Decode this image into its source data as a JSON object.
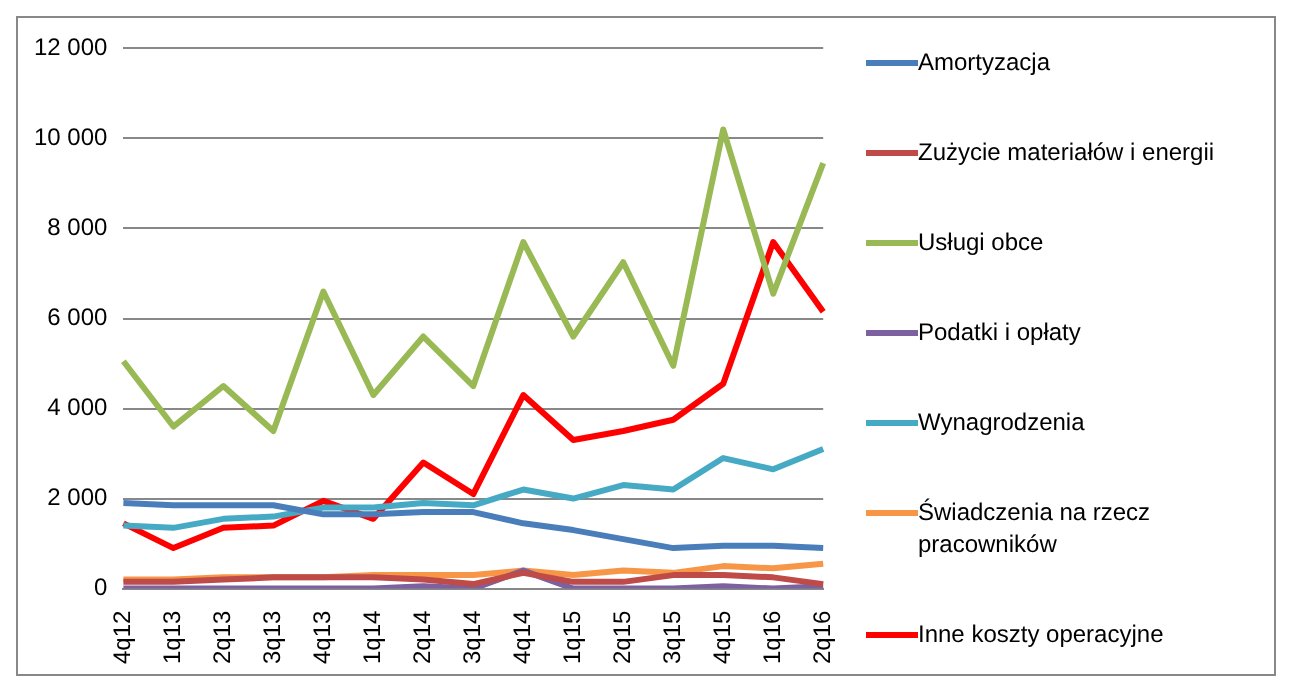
{
  "chart_data": {
    "type": "line",
    "categories": [
      "4q12",
      "1q13",
      "2q13",
      "3q13",
      "4q13",
      "1q14",
      "2q14",
      "3q14",
      "4q14",
      "1q15",
      "2q15",
      "3q15",
      "4q15",
      "1q16",
      "2q16"
    ],
    "series": [
      {
        "name": "Amortyzacja",
        "color": "#4a7ebb",
        "values": [
          1900,
          1850,
          1850,
          1850,
          1650,
          1650,
          1700,
          1700,
          1450,
          1300,
          1100,
          900,
          950,
          950,
          900
        ]
      },
      {
        "name": "Zużycie materiałów  i energii",
        "color": "#be4b48",
        "values": [
          150,
          150,
          200,
          250,
          250,
          250,
          200,
          100,
          350,
          150,
          150,
          300,
          300,
          250,
          100
        ]
      },
      {
        "name": "Usługi obce",
        "color": "#98b954",
        "values": [
          5050,
          3600,
          4500,
          3500,
          6600,
          4300,
          5600,
          4500,
          7700,
          5600,
          7250,
          4950,
          10200,
          6550,
          9450
        ]
      },
      {
        "name": "Podatki i opłaty",
        "color": "#7d60a0",
        "values": [
          0,
          0,
          0,
          0,
          0,
          0,
          50,
          0,
          400,
          0,
          0,
          0,
          50,
          0,
          50
        ]
      },
      {
        "name": "Wynagrodzenia",
        "color": "#46aac5",
        "values": [
          1400,
          1350,
          1550,
          1600,
          1800,
          1800,
          1900,
          1850,
          2200,
          2000,
          2300,
          2200,
          2900,
          2650,
          3100
        ]
      },
      {
        "name": "Świadczenia na rzecz pracowników",
        "color": "#f79646",
        "values": [
          200,
          200,
          250,
          250,
          250,
          300,
          300,
          300,
          400,
          300,
          400,
          350,
          500,
          450,
          550
        ]
      },
      {
        "name": "Inne koszty operacyjne",
        "color": "#ff0000",
        "values": [
          1450,
          900,
          1350,
          1400,
          1950,
          1550,
          2800,
          2100,
          4300,
          3300,
          3500,
          3750,
          4550,
          7700,
          6150
        ]
      }
    ],
    "ylim": [
      0,
      12000
    ],
    "yticks": [
      0,
      {
        "value": 2000,
        "label": "2 000"
      },
      {
        "value": 4000,
        "label": "4 000"
      },
      {
        "value": 6000,
        "label": "6 000"
      },
      {
        "value": 8000,
        "label": "8 000"
      },
      {
        "value": 10000,
        "label": "10 000"
      },
      {
        "value": 12000,
        "label": "12 000"
      }
    ],
    "grid": "y",
    "legend": "right",
    "marker": "none",
    "line_style": "solid"
  }
}
